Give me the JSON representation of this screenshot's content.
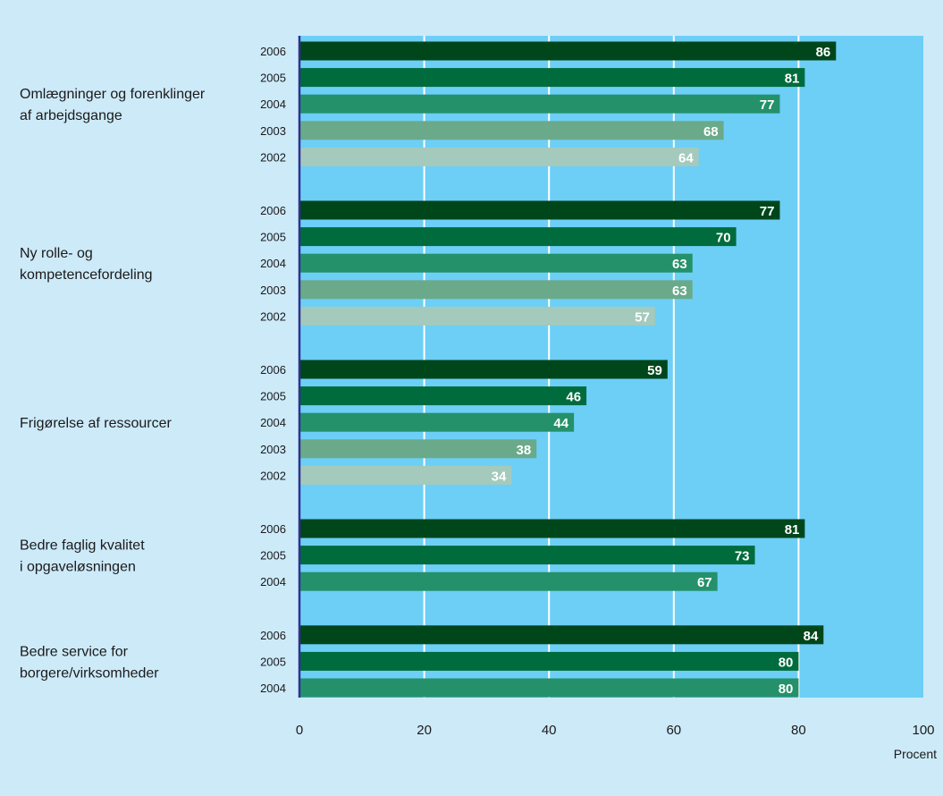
{
  "chart_data": {
    "type": "bar",
    "orientation": "horizontal",
    "groups": [
      {
        "label_lines": [
          "Omlægninger og forenklinger",
          "af arbejdsgange"
        ],
        "bars": [
          {
            "year": "2006",
            "value": 86
          },
          {
            "year": "2005",
            "value": 81
          },
          {
            "year": "2004",
            "value": 77
          },
          {
            "year": "2003",
            "value": 68
          },
          {
            "year": "2002",
            "value": 64
          }
        ]
      },
      {
        "label_lines": [
          "Ny rolle- og",
          "kompetencefordeling"
        ],
        "bars": [
          {
            "year": "2006",
            "value": 77
          },
          {
            "year": "2005",
            "value": 70
          },
          {
            "year": "2004",
            "value": 63
          },
          {
            "year": "2003",
            "value": 63
          },
          {
            "year": "2002",
            "value": 57
          }
        ]
      },
      {
        "label_lines": [
          "Frigørelse af ressourcer"
        ],
        "bars": [
          {
            "year": "2006",
            "value": 59
          },
          {
            "year": "2005",
            "value": 46
          },
          {
            "year": "2004",
            "value": 44
          },
          {
            "year": "2003",
            "value": 38
          },
          {
            "year": "2002",
            "value": 34
          }
        ]
      },
      {
        "label_lines": [
          "Bedre faglig kvalitet",
          "i opgaveløsningen"
        ],
        "bars": [
          {
            "year": "2006",
            "value": 81
          },
          {
            "year": "2005",
            "value": 73
          },
          {
            "year": "2004",
            "value": 67
          }
        ]
      },
      {
        "label_lines": [
          "Bedre service for",
          "borgere/virksomheder"
        ],
        "bars": [
          {
            "year": "2006",
            "value": 84
          },
          {
            "year": "2005",
            "value": 80
          },
          {
            "year": "2004",
            "value": 80
          }
        ]
      }
    ],
    "x_ticks": [
      0,
      20,
      40,
      60,
      80,
      100
    ],
    "xlim": [
      0,
      100
    ],
    "xlabel": "Procent",
    "grid": true,
    "colors": {
      "2006": "#00461b",
      "2005": "#006b3c",
      "2004": "#24916a",
      "2003": "#6aaa8a",
      "2002": "#a3cabd",
      "plot_background": "#6dcff6",
      "page_background": "#cdeaf9",
      "gridline": "#ffffff",
      "axis": "#2e3192"
    }
  }
}
